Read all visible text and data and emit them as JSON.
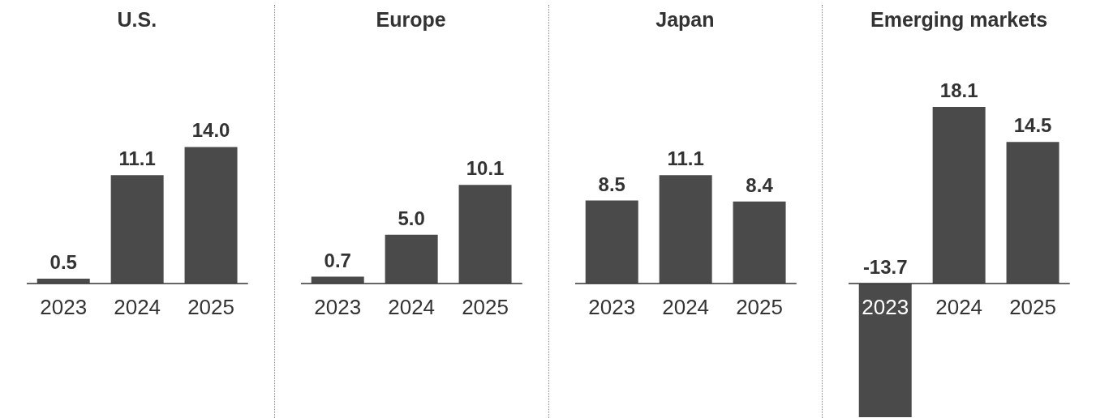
{
  "chart_data": [
    {
      "type": "bar",
      "title": "U.S.",
      "categories": [
        "2023",
        "2024",
        "2025"
      ],
      "values": [
        0.5,
        11.1,
        14.0
      ],
      "value_labels": [
        "0.5",
        "11.1",
        "14.0"
      ],
      "color": "#4a4a4a"
    },
    {
      "type": "bar",
      "title": "Europe",
      "categories": [
        "2023",
        "2024",
        "2025"
      ],
      "values": [
        0.7,
        5.0,
        10.1
      ],
      "value_labels": [
        "0.7",
        "5.0",
        "10.1"
      ],
      "color": "#4a4a4a"
    },
    {
      "type": "bar",
      "title": "Japan",
      "categories": [
        "2023",
        "2024",
        "2025"
      ],
      "values": [
        8.5,
        11.1,
        8.4
      ],
      "value_labels": [
        "8.5",
        "11.1",
        "8.4"
      ],
      "color": "#4a4a4a"
    },
    {
      "type": "bar",
      "title": "Emerging markets",
      "categories": [
        "2023",
        "2024",
        "2025"
      ],
      "values": [
        -13.7,
        18.1,
        14.5
      ],
      "value_labels": [
        "-13.7",
        "18.1",
        "14.5"
      ],
      "color": "#4a4a4a"
    }
  ]
}
